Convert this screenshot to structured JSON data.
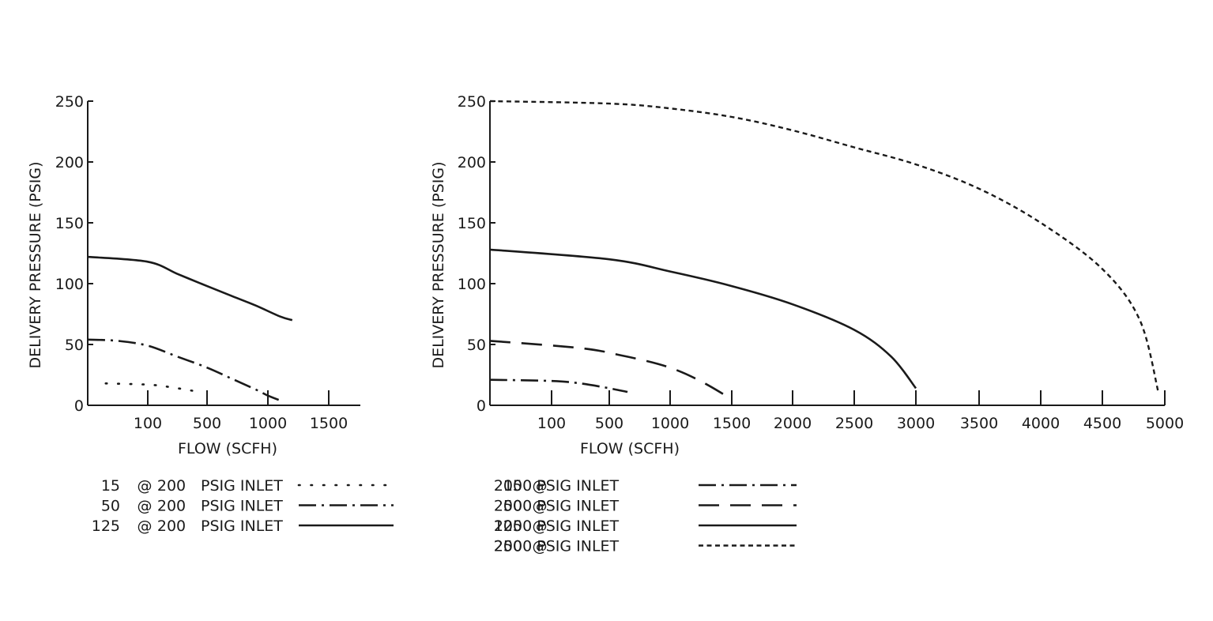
{
  "chart_data": [
    {
      "type": "line",
      "xlabel": "FLOW (SCFH)",
      "ylabel": "DELIVERY PRESSURE (PSIG)",
      "x_ticks": [
        "100",
        "500",
        "1000",
        "1500"
      ],
      "y_ticks": [
        "0",
        "50",
        "100",
        "150",
        "200",
        "250"
      ],
      "ylim": [
        0,
        250
      ],
      "series": [
        {
          "name": "15 @ 200 PSIG INLET",
          "label_parts": [
            "15",
            "@",
            "200",
            "PSIG INLET"
          ],
          "style": "dotted",
          "points": [
            [
              30,
              18
            ],
            [
              100,
              17
            ],
            [
              250,
              15
            ],
            [
              400,
              12
            ],
            [
              450,
              11
            ]
          ]
        },
        {
          "name": "50 @ 200 PSIG INLET",
          "label_parts": [
            "50",
            "@",
            "200",
            "PSIG INLET"
          ],
          "style": "dash-dot",
          "points": [
            [
              0,
              54
            ],
            [
              50,
              53
            ],
            [
              100,
              49
            ],
            [
              300,
              40
            ],
            [
              500,
              31
            ],
            [
              700,
              22
            ],
            [
              900,
              13
            ],
            [
              1000,
              8
            ],
            [
              1100,
              4
            ]
          ]
        },
        {
          "name": "125 @ 200 PSIG INLET",
          "label_parts": [
            "125",
            "@",
            "200",
            "PSIG INLET"
          ],
          "style": "solid",
          "points": [
            [
              0,
              122
            ],
            [
              100,
              118
            ],
            [
              300,
              108
            ],
            [
              500,
              98
            ],
            [
              700,
              90
            ],
            [
              900,
              82
            ],
            [
              1100,
              73
            ],
            [
              1200,
              70
            ]
          ]
        }
      ]
    },
    {
      "type": "line",
      "xlabel": "FLOW (SCFH)",
      "ylabel": "DELIVERY PRESSURE (PSIG)",
      "x_ticks": [
        "100",
        "500",
        "1000",
        "1500",
        "2000",
        "2500",
        "3000",
        "3500",
        "4000",
        "4500",
        "5000"
      ],
      "y_ticks": [
        "0",
        "50",
        "100",
        "150",
        "200",
        "250"
      ],
      "ylim": [
        0,
        250
      ],
      "series": [
        {
          "name": "15 @ 2000 PSIG INLET",
          "label_parts": [
            "15",
            "@",
            "2000 PSIG INLET"
          ],
          "style": "dash-dot",
          "points": [
            [
              0,
              21
            ],
            [
              100,
              20
            ],
            [
              300,
              18
            ],
            [
              500,
              14
            ],
            [
              600,
              12
            ],
            [
              650,
              11
            ]
          ]
        },
        {
          "name": "50 @ 2000 PSIG INLET",
          "label_parts": [
            "50",
            "@",
            "2000 PSIG INLET"
          ],
          "style": "dashed",
          "points": [
            [
              0,
              53
            ],
            [
              300,
              47
            ],
            [
              600,
              41
            ],
            [
              900,
              34
            ],
            [
              1100,
              27
            ],
            [
              1300,
              17
            ],
            [
              1500,
              5
            ]
          ]
        },
        {
          "name": "125 @ 2000 PSIG INLET",
          "label_parts": [
            "125",
            "@",
            "2000 PSIG INLET"
          ],
          "style": "solid",
          "points": [
            [
              0,
              128
            ],
            [
              500,
              120
            ],
            [
              1000,
              110
            ],
            [
              1500,
              98
            ],
            [
              2000,
              83
            ],
            [
              2500,
              62
            ],
            [
              2800,
              40
            ],
            [
              3000,
              14
            ]
          ]
        },
        {
          "name": "250 @ 2000 PSIG INLET",
          "label_parts": [
            "250",
            "@",
            "2000 PSIG INLET"
          ],
          "style": "short-dash",
          "points": [
            [
              0,
              250
            ],
            [
              500,
              248
            ],
            [
              1000,
              244
            ],
            [
              1500,
              237
            ],
            [
              2000,
              226
            ],
            [
              2500,
              212
            ],
            [
              3000,
              198
            ],
            [
              3500,
              178
            ],
            [
              4000,
              150
            ],
            [
              4500,
              112
            ],
            [
              4800,
              70
            ],
            [
              4950,
              10
            ]
          ]
        }
      ]
    }
  ]
}
